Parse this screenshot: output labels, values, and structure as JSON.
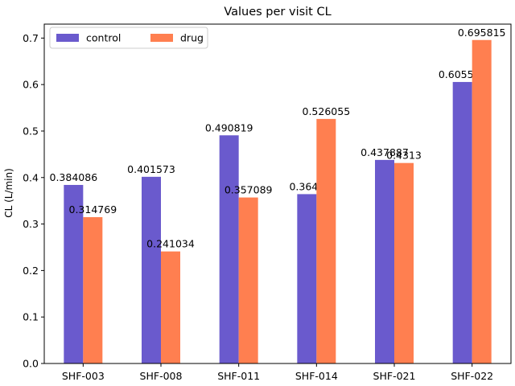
{
  "chart_data": {
    "type": "bar",
    "title": "Values per visit CL",
    "xlabel": "",
    "ylabel": "CL (L/min)",
    "categories": [
      "SHF-003",
      "SHF-008",
      "SHF-011",
      "SHF-014",
      "SHF-021",
      "SHF-022"
    ],
    "series": [
      {
        "name": "control",
        "color": "#6a5acd",
        "values": [
          0.384086,
          0.401573,
          0.490819,
          0.3643,
          0.437887,
          0.605545
        ],
        "labels": [
          "0.384086",
          "0.401573",
          "0.490819",
          "0.3643",
          "0.437887",
          "0.605545"
        ]
      },
      {
        "name": "drug",
        "color": "#ff7f50",
        "values": [
          0.314769,
          0.241034,
          0.357089,
          0.526055,
          0.4313,
          0.695815
        ],
        "labels": [
          "0.314769",
          "0.241034",
          "0.357089",
          "0.526055",
          "0.4313",
          "0.695815"
        ]
      }
    ],
    "ylim": [
      0,
      0.73
    ],
    "yticks": [
      0.0,
      0.1,
      0.2,
      0.3,
      0.4,
      0.5,
      0.6,
      0.7
    ],
    "ytick_labels": [
      "0.0",
      "0.1",
      "0.2",
      "0.3",
      "0.4",
      "0.5",
      "0.6",
      "0.7"
    ],
    "grid": false,
    "legend_position": "top-left"
  }
}
